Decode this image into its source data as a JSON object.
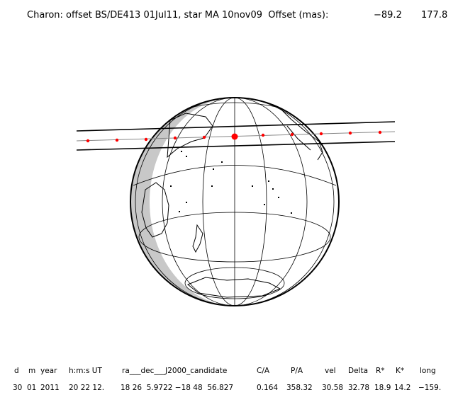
{
  "title": {
    "main": "Charon: offset BS/DE413 01Jul11, star MA 10nov09  Offset (mas):",
    "offset_1": "−89.2",
    "offset_2": "177.8"
  },
  "colors": {
    "background": "#ffffff",
    "ink": "#000000",
    "night_shade": "#c8c8c8",
    "shadow_points": "#ff0000",
    "center_line": "#888888"
  },
  "table": {
    "headers": [
      "d",
      "m",
      "year",
      "h:m:s UT",
      "ra___dec___J2000_candidate",
      "C/A",
      "P/A",
      "vel",
      "Delta",
      "R*",
      "K*",
      "long"
    ],
    "values": [
      "30",
      "01",
      "2011",
      "20 22 12.",
      "18 26  5.9722 −18 48  56.827",
      "0.164",
      "358.32",
      "30.58",
      "32.78",
      "18.9",
      "14.2",
      "−159."
    ]
  }
}
